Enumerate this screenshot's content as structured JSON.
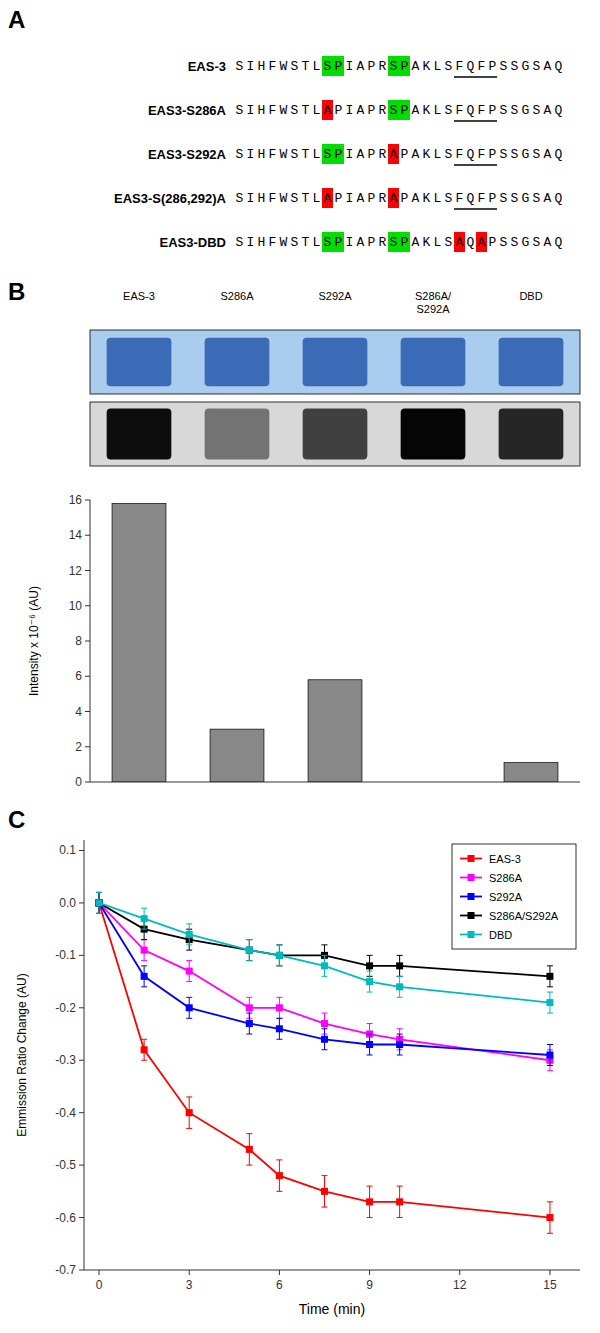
{
  "chart_data": [
    {
      "type": "sequence",
      "title": "A",
      "rows": [
        {
          "label": "EAS-3",
          "segments": [
            {
              "text": "SIHFWSTL",
              "color": null
            },
            {
              "text": "S",
              "color": "#00dd00"
            },
            {
              "text": "P",
              "color": "#00dd00"
            },
            {
              "text": "IAPR",
              "color": null
            },
            {
              "text": "S",
              "color": "#00dd00"
            },
            {
              "text": "P",
              "color": "#00dd00"
            },
            {
              "text": "AKLS",
              "color": null
            },
            {
              "text": "FQFP",
              "color": null,
              "underline": true
            },
            {
              "text": "SSGSAQ",
              "color": null
            }
          ]
        },
        {
          "label": "EAS3-S286A",
          "segments": [
            {
              "text": "SIHFWSTL",
              "color": null
            },
            {
              "text": "A",
              "color": "#ff0000"
            },
            {
              "text": "PIAPR",
              "color": null
            },
            {
              "text": "S",
              "color": "#00dd00"
            },
            {
              "text": "P",
              "color": "#00dd00"
            },
            {
              "text": "AKLS",
              "color": null
            },
            {
              "text": "FQFP",
              "color": null,
              "underline": true
            },
            {
              "text": "SSGSAQ",
              "color": null
            }
          ]
        },
        {
          "label": "EAS3-S292A",
          "segments": [
            {
              "text": "SIHFWSTL",
              "color": null
            },
            {
              "text": "S",
              "color": "#00dd00"
            },
            {
              "text": "P",
              "color": "#00dd00"
            },
            {
              "text": "IAPR",
              "color": null
            },
            {
              "text": "A",
              "color": "#ff0000"
            },
            {
              "text": "PAKLS",
              "color": null
            },
            {
              "text": "FQFP",
              "color": null,
              "underline": true
            },
            {
              "text": "SSGSAQ",
              "color": null
            }
          ]
        },
        {
          "label": "EAS3-S(286,292)A",
          "segments": [
            {
              "text": "SIHFWSTL",
              "color": null
            },
            {
              "text": "A",
              "color": "#ff0000"
            },
            {
              "text": "PIAPR",
              "color": null
            },
            {
              "text": "A",
              "color": "#ff0000"
            },
            {
              "text": "PAKLS",
              "color": null
            },
            {
              "text": "FQFP",
              "color": null,
              "underline": true
            },
            {
              "text": "SSGSAQ",
              "color": null
            }
          ]
        },
        {
          "label": "EAS3-DBD",
          "segments": [
            {
              "text": "SIHFWSTL",
              "color": null
            },
            {
              "text": "S",
              "color": "#00dd00"
            },
            {
              "text": "P",
              "color": "#00dd00"
            },
            {
              "text": "IAPR",
              "color": null
            },
            {
              "text": "S",
              "color": "#00dd00"
            },
            {
              "text": "P",
              "color": "#00dd00"
            },
            {
              "text": "AKLS",
              "color": null
            },
            {
              "text": "A",
              "color": "#ff0000"
            },
            {
              "text": "Q",
              "color": null
            },
            {
              "text": "A",
              "color": "#ff0000"
            },
            {
              "text": "PSSGSAQ",
              "color": null
            }
          ]
        }
      ]
    },
    {
      "type": "bar",
      "title": "B",
      "categories": [
        "EAS-3",
        "S286A",
        "S292A",
        "S286A/\nS292A",
        "DBD"
      ],
      "values": [
        15.8,
        3.0,
        5.8,
        0.0,
        1.1
      ],
      "color": "#888888",
      "ylabel": "Intensity x 10⁻⁶ (AU)",
      "ylim": [
        0,
        16
      ],
      "yticks": [
        0,
        2,
        4,
        6,
        8,
        10,
        12,
        14,
        16
      ],
      "wb_bands": [
        0.95,
        0.55,
        0.75,
        0.98,
        0.85
      ]
    },
    {
      "type": "line",
      "title": "C",
      "x": [
        0,
        1.5,
        3,
        5,
        6,
        7.5,
        9,
        10,
        15
      ],
      "series": [
        {
          "name": "EAS-3",
          "color": "#ff0000",
          "values": [
            0,
            -0.28,
            -0.4,
            -0.47,
            -0.52,
            -0.55,
            -0.57,
            -0.57,
            -0.6
          ],
          "errors": [
            0.02,
            0.02,
            0.03,
            0.03,
            0.03,
            0.03,
            0.03,
            0.03,
            0.03
          ]
        },
        {
          "name": "S286A",
          "color": "#ff00ff",
          "values": [
            0,
            -0.09,
            -0.13,
            -0.2,
            -0.2,
            -0.23,
            -0.25,
            -0.26,
            -0.3
          ],
          "errors": [
            0.02,
            0.02,
            0.02,
            0.02,
            0.02,
            0.02,
            0.02,
            0.02,
            0.02
          ]
        },
        {
          "name": "S292A",
          "color": "#0000ff",
          "values": [
            0,
            -0.14,
            -0.2,
            -0.23,
            -0.24,
            -0.26,
            -0.27,
            -0.27,
            -0.29
          ],
          "errors": [
            0.02,
            0.02,
            0.02,
            0.02,
            0.02,
            0.02,
            0.02,
            0.02,
            0.02
          ]
        },
        {
          "name": "S286A/S292A",
          "color": "#000000",
          "values": [
            0,
            -0.05,
            -0.07,
            -0.09,
            -0.1,
            -0.1,
            -0.12,
            -0.12,
            -0.14
          ],
          "errors": [
            0.02,
            0.02,
            0.02,
            0.02,
            0.02,
            0.02,
            0.02,
            0.02,
            0.02
          ]
        },
        {
          "name": "DBD",
          "color": "#00bbbb",
          "values": [
            0,
            -0.03,
            -0.06,
            -0.09,
            -0.1,
            -0.12,
            -0.15,
            -0.16,
            -0.19
          ],
          "errors": [
            0.02,
            0.02,
            0.02,
            0.02,
            0.02,
            0.02,
            0.02,
            0.02,
            0.02
          ]
        }
      ],
      "xlabel": "Time (min)",
      "ylabel": "Emmission Ratio Change (AU)",
      "xlim": [
        -0.5,
        16
      ],
      "ylim": [
        -0.7,
        0.12
      ],
      "xticks": [
        0,
        3,
        6,
        9,
        12,
        15
      ],
      "yticks": [
        0.1,
        {
          "value": 0,
          "label": "0.0"
        },
        -0.1,
        -0.2,
        -0.3,
        -0.4,
        -0.5,
        -0.6,
        -0.7
      ],
      "legend": "upper right",
      "marker": "square"
    }
  ]
}
